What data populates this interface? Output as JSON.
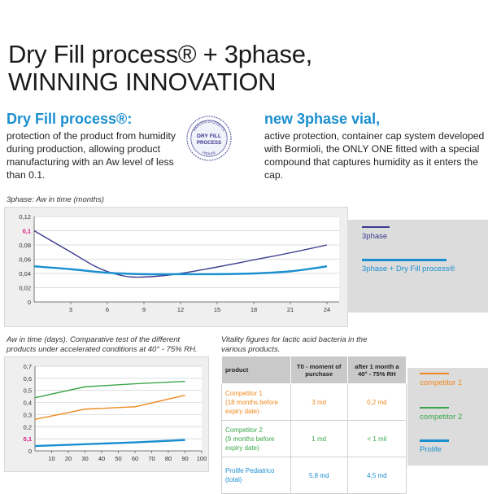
{
  "title_line1": "Dry Fill process® + 3phase,",
  "title_line2": "WINNING INNOVATION",
  "left_col": {
    "heading": "Dry Fill process®:",
    "lines": [
      "protection of the product from humidity",
      "during production, allowing product",
      "manufacturing with an Aw level of less than 0.1."
    ]
  },
  "right_col": {
    "heading": "new 3phase vial,",
    "lines": [
      "active protection, container cap system developed",
      "with Bormioli, the ONLY ONE fitted with a special",
      "compound that captures humidity as it enters the cap."
    ]
  },
  "seal": {
    "ring_top": "MARCHIO DI QUALITÀ",
    "center_1": "DRY FILL",
    "center_2": "PROCESS",
    "ring_bottom": "PROLIFE"
  },
  "colors": {
    "blue": "#1a8fd0",
    "purple": "#3a3a8e",
    "orange": "#f0891e",
    "green": "#3aa64a",
    "magenta": "#d6157f"
  },
  "chart_data": [
    {
      "type": "line",
      "title": "3phase: Aw in time (months)",
      "x": [
        0,
        3,
        6,
        9,
        12,
        15,
        18,
        21,
        24
      ],
      "y_ticks": [
        "0",
        "0,02",
        "0,04",
        "0,06",
        "0,08",
        "0,1",
        "0,12"
      ],
      "x_ticks": [
        "3",
        "6",
        "9",
        "12",
        "15",
        "18",
        "21",
        "24"
      ],
      "ylim": [
        0,
        0.12
      ],
      "xlim": [
        0,
        25
      ],
      "highlight_tick": "0,1",
      "series": [
        {
          "name": "3phase",
          "color": "#3a3a8e",
          "points": [
            [
              0,
              0.1
            ],
            [
              3,
              0.07
            ],
            [
              5,
              0.05
            ],
            [
              6.5,
              0.04
            ],
            [
              8,
              0.035
            ],
            [
              10,
              0.036
            ],
            [
              12,
              0.04
            ],
            [
              15,
              0.049
            ],
            [
              18,
              0.059
            ],
            [
              21,
              0.069
            ],
            [
              24,
              0.08
            ]
          ]
        },
        {
          "name": "3phase + Dry Fill process®",
          "color": "#1a8fd0",
          "points": [
            [
              0,
              0.05
            ],
            [
              3,
              0.046
            ],
            [
              6,
              0.041
            ],
            [
              9,
              0.039
            ],
            [
              12,
              0.039
            ],
            [
              15,
              0.039
            ],
            [
              18,
              0.04
            ],
            [
              21,
              0.043
            ],
            [
              24,
              0.05
            ]
          ]
        }
      ],
      "legend": "right"
    },
    {
      "type": "line",
      "title": "Aw in time (days). Comparative test of the different products under accelerated conditions at 40° - 75% RH.",
      "x_ticks": [
        "10",
        "20",
        "30",
        "40",
        "50",
        "60",
        "70",
        "80",
        "90",
        "100"
      ],
      "y_ticks": [
        "0",
        "0,1",
        "0,2",
        "0,3",
        "0,4",
        "0,5",
        "0,6",
        "0,7"
      ],
      "ylim": [
        0,
        0.7
      ],
      "xlim": [
        0,
        100
      ],
      "highlight_tick": "0,1",
      "series": [
        {
          "name": "competitor 1",
          "color": "#f0891e",
          "points": [
            [
              0,
              0.26
            ],
            [
              30,
              0.345
            ],
            [
              60,
              0.365
            ],
            [
              90,
              0.46
            ]
          ]
        },
        {
          "name": "competitor 2",
          "color": "#3aa64a",
          "points": [
            [
              0,
              0.44
            ],
            [
              30,
              0.53
            ],
            [
              60,
              0.555
            ],
            [
              90,
              0.575
            ]
          ]
        },
        {
          "name": "Prolife",
          "color": "#1a8fd0",
          "points": [
            [
              0,
              0.04
            ],
            [
              30,
              0.055
            ],
            [
              60,
              0.07
            ],
            [
              90,
              0.09
            ]
          ]
        }
      ],
      "legend": "right"
    },
    {
      "type": "table",
      "title": "Vitality figures for lactic acid bacteria in the various products.",
      "headers": [
        "product",
        "T0 - moment of purchase",
        "after 1 month a 40° - 75% RH"
      ],
      "rows": [
        {
          "product_1": "Competitor 1",
          "product_2": "(18 months before expiry date)",
          "t0": "3 md",
          "t1": "0,2 md",
          "color": "#f0891e"
        },
        {
          "product_1": "Competitor 2",
          "product_2": "(9 months before expiry date)",
          "t0": "1 md",
          "t1": "< 1 mil",
          "color": "#3aa64a"
        },
        {
          "product_1": "Prolife Pediatrico",
          "product_2": "(total)",
          "t0": "5,8 md",
          "t1": "4,5 md",
          "color": "#1a8fd0"
        }
      ]
    }
  ],
  "legend_right": {
    "chart1": [
      "3phase",
      "3phase + Dry Fill process®"
    ],
    "chart2": [
      "competitor 1",
      "competitor 2",
      "Prolife"
    ]
  }
}
